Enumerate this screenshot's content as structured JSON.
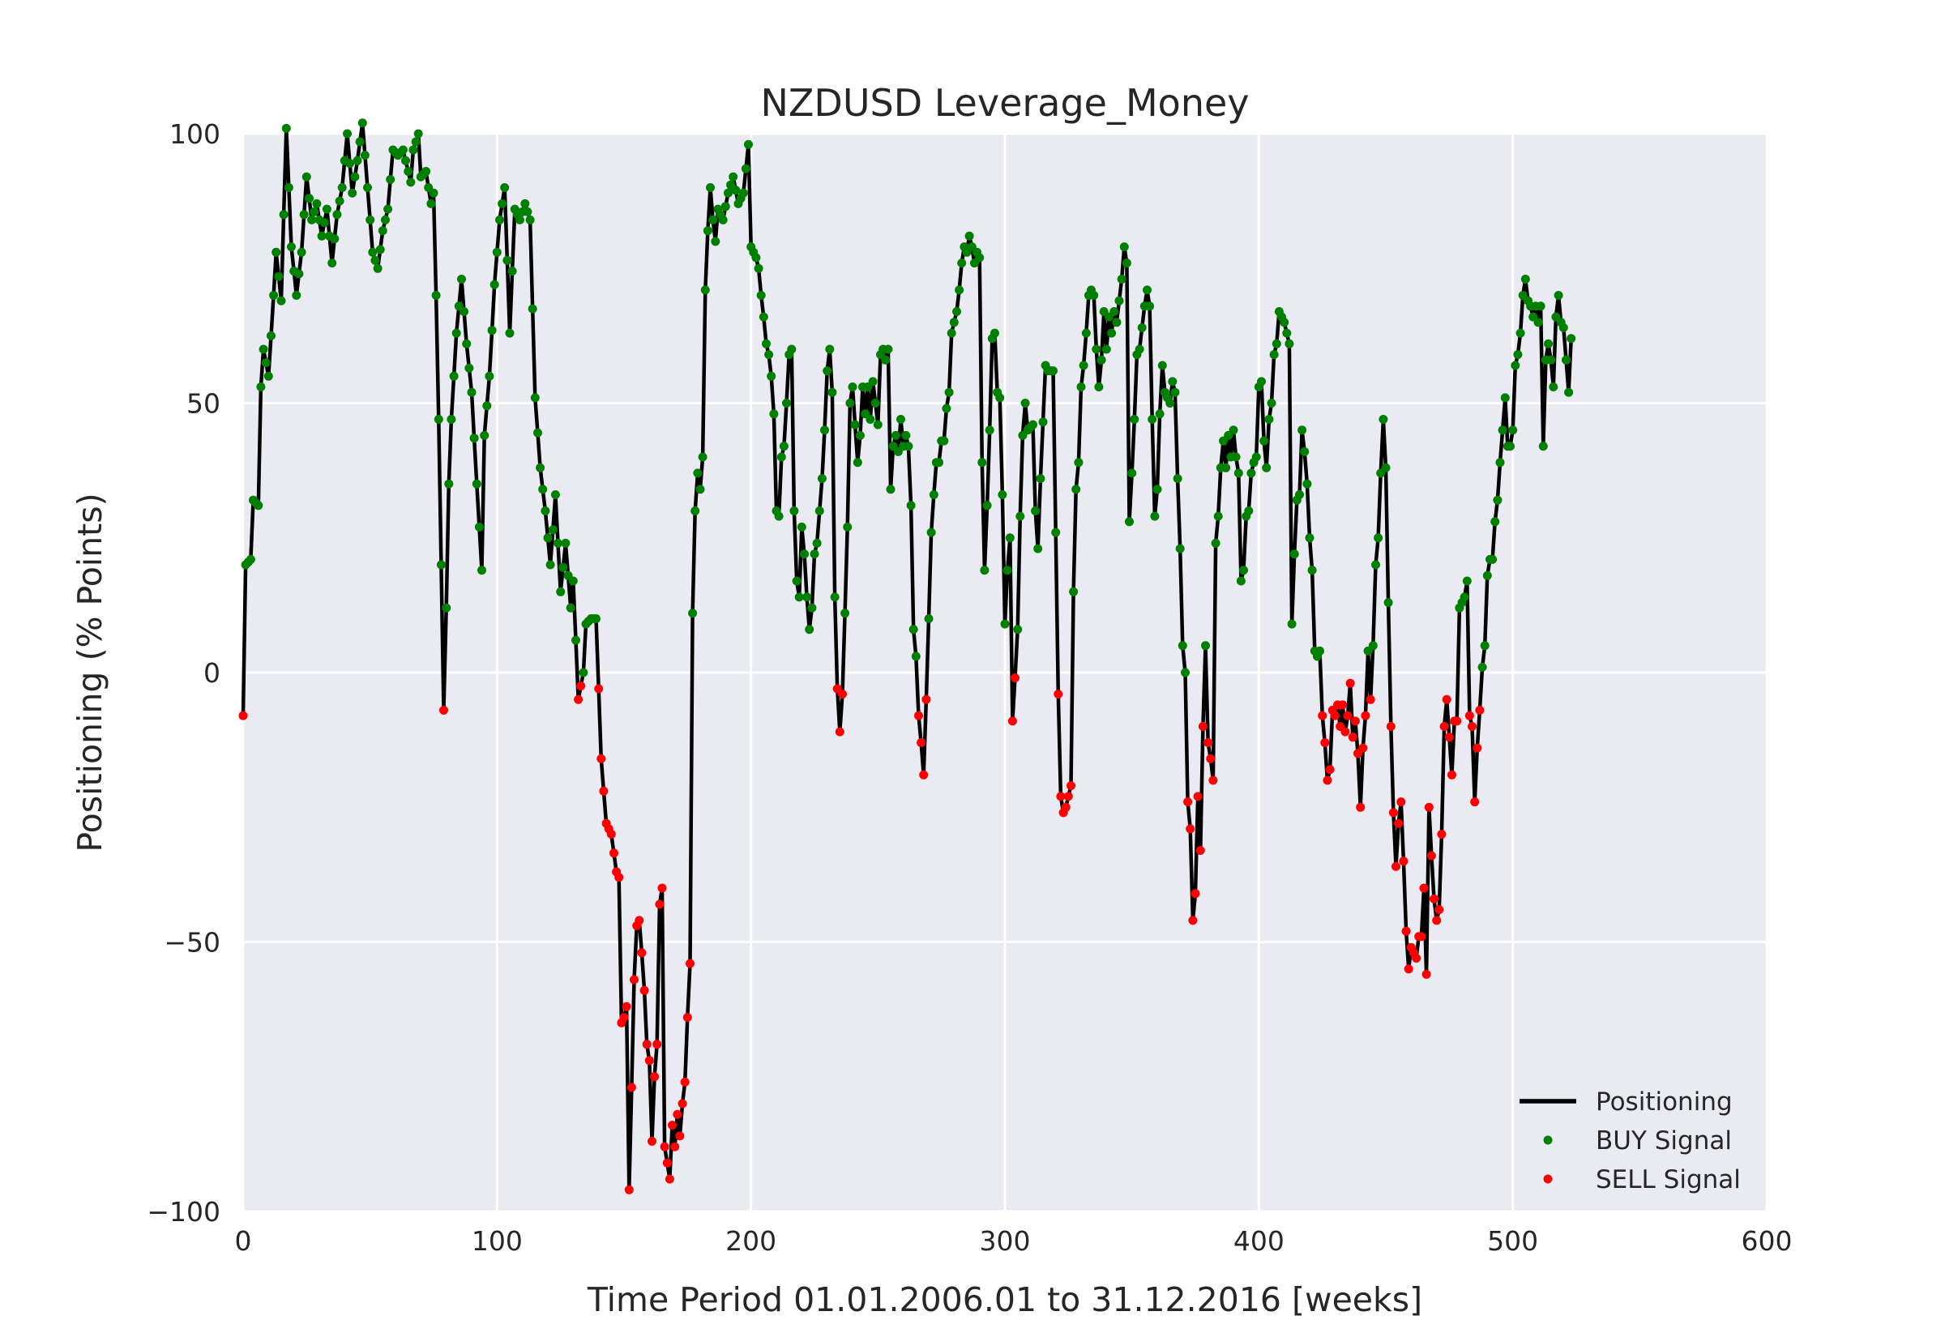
{
  "chart_data": {
    "type": "line",
    "title": "NZDUSD Leverage_Money",
    "xlabel": "Time Period 01.01.2006.01 to 31.12.2016 [weeks]",
    "ylabel": "Positioning (% Points)",
    "xlim": [
      0,
      600
    ],
    "ylim": [
      -100,
      100
    ],
    "xticks": [
      0,
      100,
      200,
      300,
      400,
      500,
      600
    ],
    "yticks": [
      -100,
      -50,
      0,
      50,
      100
    ],
    "xtick_labels": [
      "0",
      "100",
      "200",
      "300",
      "400",
      "500",
      "600"
    ],
    "ytick_labels": [
      "−100",
      "−50",
      "0",
      "50",
      "100"
    ],
    "grid": true,
    "legend_position": "lower-right",
    "colors": {
      "line": "#000000",
      "buy": "#008000",
      "sell": "#ff0000",
      "background": "#eaeaf2",
      "grid": "#ffffff"
    },
    "series": [
      {
        "name": "Positioning",
        "kind": "line"
      },
      {
        "name": "BUY Signal",
        "kind": "marker",
        "rule": "value >= 0"
      },
      {
        "name": "SELL Signal",
        "kind": "marker",
        "rule": "value < 0"
      }
    ],
    "keypoints": [
      [
        0,
        -8
      ],
      [
        1,
        20
      ],
      [
        3,
        21
      ],
      [
        4,
        32
      ],
      [
        6,
        31
      ],
      [
        7,
        53
      ],
      [
        8,
        60
      ],
      [
        10,
        55
      ],
      [
        12,
        70
      ],
      [
        13,
        78
      ],
      [
        15,
        69
      ],
      [
        17,
        101
      ],
      [
        19,
        79
      ],
      [
        21,
        70
      ],
      [
        23,
        78
      ],
      [
        25,
        92
      ],
      [
        27,
        84
      ],
      [
        29,
        87
      ],
      [
        31,
        81
      ],
      [
        33,
        86
      ],
      [
        35,
        76
      ],
      [
        37,
        85
      ],
      [
        39,
        90
      ],
      [
        41,
        100
      ],
      [
        43,
        89
      ],
      [
        45,
        95
      ],
      [
        47,
        102
      ],
      [
        49,
        90
      ],
      [
        51,
        78
      ],
      [
        53,
        75
      ],
      [
        55,
        82
      ],
      [
        57,
        86
      ],
      [
        59,
        97
      ],
      [
        61,
        96
      ],
      [
        63,
        97
      ],
      [
        65,
        93
      ],
      [
        66,
        91
      ],
      [
        67,
        97
      ],
      [
        69,
        100
      ],
      [
        70,
        92
      ],
      [
        72,
        93
      ],
      [
        74,
        87
      ],
      [
        75,
        89
      ],
      [
        76,
        70
      ],
      [
        77,
        47
      ],
      [
        79,
        -7
      ],
      [
        80,
        12
      ],
      [
        81,
        35
      ],
      [
        82,
        47
      ],
      [
        84,
        63
      ],
      [
        86,
        73
      ],
      [
        88,
        61
      ],
      [
        90,
        52
      ],
      [
        92,
        35
      ],
      [
        94,
        19
      ],
      [
        95,
        44
      ],
      [
        97,
        55
      ],
      [
        99,
        72
      ],
      [
        101,
        84
      ],
      [
        103,
        90
      ],
      [
        105,
        63
      ],
      [
        107,
        86
      ],
      [
        109,
        84
      ],
      [
        111,
        87
      ],
      [
        113,
        84
      ],
      [
        115,
        51
      ],
      [
        117,
        38
      ],
      [
        119,
        30
      ],
      [
        121,
        20
      ],
      [
        123,
        33
      ],
      [
        125,
        15
      ],
      [
        127,
        24
      ],
      [
        129,
        12
      ],
      [
        130,
        17
      ],
      [
        131,
        6
      ],
      [
        132,
        -5
      ],
      [
        134,
        0
      ],
      [
        135,
        9
      ],
      [
        137,
        10
      ],
      [
        139,
        10
      ],
      [
        140,
        -3
      ],
      [
        141,
        -16
      ],
      [
        143,
        -28
      ],
      [
        145,
        -30
      ],
      [
        147,
        -37
      ],
      [
        148,
        -38
      ],
      [
        149,
        -65
      ],
      [
        150,
        -64
      ],
      [
        151,
        -62
      ],
      [
        152,
        -96
      ],
      [
        153,
        -77
      ],
      [
        154,
        -57
      ],
      [
        155,
        -47
      ],
      [
        156,
        -46
      ],
      [
        157,
        -52
      ],
      [
        158,
        -59
      ],
      [
        159,
        -69
      ],
      [
        160,
        -72
      ],
      [
        161,
        -87
      ],
      [
        162,
        -75
      ],
      [
        163,
        -69
      ],
      [
        164,
        -43
      ],
      [
        165,
        -40
      ],
      [
        166,
        -88
      ],
      [
        167,
        -91
      ],
      [
        168,
        -94
      ],
      [
        169,
        -84
      ],
      [
        170,
        -88
      ],
      [
        171,
        -82
      ],
      [
        172,
        -86
      ],
      [
        173,
        -80
      ],
      [
        174,
        -76
      ],
      [
        175,
        -64
      ],
      [
        176,
        -54
      ],
      [
        177,
        11
      ],
      [
        178,
        30
      ],
      [
        179,
        37
      ],
      [
        180,
        34
      ],
      [
        181,
        40
      ],
      [
        182,
        71
      ],
      [
        183,
        82
      ],
      [
        184,
        90
      ],
      [
        185,
        84
      ],
      [
        186,
        80
      ],
      [
        187,
        86
      ],
      [
        189,
        84
      ],
      [
        191,
        89
      ],
      [
        193,
        92
      ],
      [
        195,
        87
      ],
      [
        197,
        89
      ],
      [
        199,
        98
      ],
      [
        200,
        79
      ],
      [
        202,
        77
      ],
      [
        203,
        75
      ],
      [
        204,
        70
      ],
      [
        205,
        66
      ],
      [
        206,
        61
      ],
      [
        207,
        59
      ],
      [
        208,
        55
      ],
      [
        209,
        48
      ],
      [
        210,
        30
      ],
      [
        211,
        29
      ],
      [
        212,
        40
      ],
      [
        213,
        42
      ],
      [
        214,
        50
      ],
      [
        215,
        59
      ],
      [
        216,
        60
      ],
      [
        217,
        30
      ],
      [
        218,
        17
      ],
      [
        219,
        14
      ],
      [
        220,
        27
      ],
      [
        221,
        22
      ],
      [
        222,
        14
      ],
      [
        223,
        8
      ],
      [
        224,
        12
      ],
      [
        225,
        22
      ],
      [
        226,
        24
      ],
      [
        227,
        30
      ],
      [
        228,
        36
      ],
      [
        229,
        45
      ],
      [
        230,
        56
      ],
      [
        231,
        60
      ],
      [
        232,
        52
      ],
      [
        233,
        14
      ],
      [
        234,
        -3
      ],
      [
        235,
        -11
      ],
      [
        236,
        -4
      ],
      [
        237,
        11
      ],
      [
        238,
        27
      ],
      [
        239,
        50
      ],
      [
        240,
        53
      ],
      [
        241,
        46
      ],
      [
        242,
        39
      ],
      [
        243,
        44
      ],
      [
        244,
        53
      ],
      [
        245,
        48
      ],
      [
        246,
        53
      ],
      [
        247,
        47
      ],
      [
        248,
        54
      ],
      [
        249,
        50
      ],
      [
        250,
        46
      ],
      [
        251,
        59
      ],
      [
        252,
        60
      ],
      [
        253,
        58
      ],
      [
        254,
        60
      ],
      [
        255,
        34
      ],
      [
        256,
        42
      ],
      [
        257,
        44
      ],
      [
        258,
        41
      ],
      [
        259,
        47
      ],
      [
        260,
        42
      ],
      [
        261,
        44
      ],
      [
        262,
        42
      ],
      [
        263,
        31
      ],
      [
        264,
        8
      ],
      [
        265,
        3
      ],
      [
        266,
        -8
      ],
      [
        267,
        -13
      ],
      [
        268,
        -19
      ],
      [
        269,
        -5
      ],
      [
        270,
        10
      ],
      [
        271,
        26
      ],
      [
        272,
        33
      ],
      [
        273,
        39
      ],
      [
        274,
        39
      ],
      [
        275,
        43
      ],
      [
        276,
        43
      ],
      [
        277,
        49
      ],
      [
        278,
        52
      ],
      [
        279,
        63
      ],
      [
        280,
        65
      ],
      [
        281,
        67
      ],
      [
        282,
        71
      ],
      [
        283,
        76
      ],
      [
        284,
        79
      ],
      [
        285,
        78
      ],
      [
        286,
        81
      ],
      [
        287,
        79
      ],
      [
        288,
        76
      ],
      [
        289,
        78
      ],
      [
        290,
        77
      ],
      [
        291,
        39
      ],
      [
        292,
        19
      ],
      [
        293,
        31
      ],
      [
        294,
        45
      ],
      [
        295,
        62
      ],
      [
        296,
        63
      ],
      [
        297,
        52
      ],
      [
        298,
        51
      ],
      [
        299,
        33
      ],
      [
        300,
        9
      ],
      [
        301,
        19
      ],
      [
        302,
        25
      ],
      [
        303,
        -9
      ],
      [
        304,
        -1
      ],
      [
        305,
        8
      ],
      [
        306,
        29
      ],
      [
        307,
        44
      ],
      [
        308,
        50
      ],
      [
        309,
        45
      ],
      [
        311,
        46
      ],
      [
        312,
        30
      ],
      [
        313,
        23
      ],
      [
        314,
        36
      ],
      [
        316,
        57
      ],
      [
        317,
        56
      ],
      [
        319,
        56
      ],
      [
        320,
        26
      ],
      [
        321,
        -4
      ],
      [
        322,
        -23
      ],
      [
        323,
        -26
      ],
      [
        324,
        -25
      ],
      [
        325,
        -23
      ],
      [
        326,
        -21
      ],
      [
        327,
        15
      ],
      [
        328,
        34
      ],
      [
        329,
        39
      ],
      [
        330,
        53
      ],
      [
        331,
        57
      ],
      [
        332,
        63
      ],
      [
        333,
        70
      ],
      [
        334,
        71
      ],
      [
        335,
        70
      ],
      [
        336,
        60
      ],
      [
        337,
        53
      ],
      [
        338,
        58
      ],
      [
        339,
        67
      ],
      [
        340,
        60
      ],
      [
        341,
        66
      ],
      [
        342,
        63
      ],
      [
        343,
        67
      ],
      [
        344,
        65
      ],
      [
        345,
        69
      ],
      [
        346,
        73
      ],
      [
        347,
        79
      ],
      [
        348,
        76
      ],
      [
        349,
        28
      ],
      [
        350,
        37
      ],
      [
        351,
        47
      ],
      [
        352,
        59
      ],
      [
        353,
        60
      ],
      [
        354,
        64
      ],
      [
        355,
        68
      ],
      [
        356,
        71
      ],
      [
        357,
        68
      ],
      [
        358,
        47
      ],
      [
        359,
        29
      ],
      [
        360,
        34
      ],
      [
        361,
        48
      ],
      [
        362,
        57
      ],
      [
        363,
        52
      ],
      [
        364,
        51
      ],
      [
        365,
        50
      ],
      [
        366,
        54
      ],
      [
        367,
        52
      ],
      [
        368,
        36
      ],
      [
        369,
        23
      ],
      [
        370,
        5
      ],
      [
        371,
        0
      ],
      [
        372,
        -24
      ],
      [
        373,
        -29
      ],
      [
        374,
        -46
      ],
      [
        375,
        -41
      ],
      [
        376,
        -23
      ],
      [
        377,
        -33
      ],
      [
        378,
        -10
      ],
      [
        379,
        5
      ],
      [
        380,
        -13
      ],
      [
        381,
        -16
      ],
      [
        382,
        -20
      ],
      [
        383,
        24
      ],
      [
        384,
        29
      ],
      [
        385,
        38
      ],
      [
        386,
        43
      ],
      [
        387,
        38
      ],
      [
        388,
        44
      ],
      [
        389,
        40
      ],
      [
        390,
        45
      ],
      [
        391,
        40
      ],
      [
        392,
        37
      ],
      [
        393,
        17
      ],
      [
        394,
        19
      ],
      [
        395,
        29
      ],
      [
        396,
        30
      ],
      [
        397,
        37
      ],
      [
        398,
        39
      ],
      [
        399,
        40
      ],
      [
        400,
        53
      ],
      [
        401,
        54
      ],
      [
        402,
        43
      ],
      [
        403,
        38
      ],
      [
        404,
        47
      ],
      [
        405,
        50
      ],
      [
        406,
        59
      ],
      [
        407,
        61
      ],
      [
        408,
        67
      ],
      [
        409,
        66
      ],
      [
        410,
        65
      ],
      [
        411,
        63
      ],
      [
        412,
        61
      ],
      [
        413,
        9
      ],
      [
        414,
        22
      ],
      [
        415,
        32
      ],
      [
        416,
        33
      ],
      [
        417,
        45
      ],
      [
        418,
        41
      ],
      [
        419,
        35
      ],
      [
        420,
        25
      ],
      [
        421,
        19
      ],
      [
        422,
        4
      ],
      [
        423,
        3
      ],
      [
        424,
        4
      ],
      [
        425,
        -8
      ],
      [
        426,
        -13
      ],
      [
        427,
        -20
      ],
      [
        428,
        -18
      ],
      [
        429,
        -7
      ],
      [
        430,
        -8
      ],
      [
        431,
        -6
      ],
      [
        432,
        -10
      ],
      [
        433,
        -6
      ],
      [
        434,
        -11
      ],
      [
        435,
        -8
      ],
      [
        436,
        -2
      ],
      [
        437,
        -12
      ],
      [
        438,
        -9
      ],
      [
        439,
        -15
      ],
      [
        440,
        -25
      ],
      [
        441,
        -14
      ],
      [
        442,
        -8
      ],
      [
        443,
        4
      ],
      [
        444,
        -5
      ],
      [
        445,
        5
      ],
      [
        446,
        20
      ],
      [
        447,
        25
      ],
      [
        448,
        37
      ],
      [
        449,
        47
      ],
      [
        450,
        38
      ],
      [
        451,
        13
      ],
      [
        452,
        -10
      ],
      [
        453,
        -26
      ],
      [
        454,
        -36
      ],
      [
        455,
        -28
      ],
      [
        456,
        -24
      ],
      [
        457,
        -35
      ],
      [
        458,
        -48
      ],
      [
        459,
        -55
      ],
      [
        460,
        -51
      ],
      [
        461,
        -52
      ],
      [
        462,
        -53
      ],
      [
        463,
        -49
      ],
      [
        464,
        -49
      ],
      [
        465,
        -40
      ],
      [
        466,
        -56
      ],
      [
        467,
        -25
      ],
      [
        468,
        -34
      ],
      [
        469,
        -42
      ],
      [
        470,
        -46
      ],
      [
        471,
        -44
      ],
      [
        472,
        -30
      ],
      [
        473,
        -10
      ],
      [
        474,
        -5
      ],
      [
        475,
        -12
      ],
      [
        476,
        -19
      ],
      [
        477,
        -9
      ],
      [
        478,
        -9
      ],
      [
        479,
        12
      ],
      [
        480,
        13
      ],
      [
        481,
        14
      ],
      [
        482,
        17
      ],
      [
        483,
        -8
      ],
      [
        484,
        -10
      ],
      [
        485,
        -24
      ],
      [
        486,
        -14
      ],
      [
        487,
        -7
      ],
      [
        488,
        1
      ],
      [
        489,
        5
      ],
      [
        490,
        18
      ],
      [
        491,
        21
      ],
      [
        492,
        21
      ],
      [
        493,
        28
      ],
      [
        494,
        32
      ],
      [
        495,
        39
      ],
      [
        496,
        45
      ],
      [
        497,
        51
      ],
      [
        498,
        42
      ],
      [
        499,
        42
      ],
      [
        500,
        45
      ],
      [
        501,
        57
      ],
      [
        502,
        59
      ],
      [
        503,
        63
      ],
      [
        504,
        70
      ],
      [
        505,
        73
      ],
      [
        506,
        69
      ],
      [
        507,
        68
      ],
      [
        508,
        66
      ],
      [
        509,
        68
      ],
      [
        510,
        65
      ],
      [
        511,
        68
      ],
      [
        512,
        42
      ],
      [
        513,
        58
      ],
      [
        514,
        61
      ],
      [
        515,
        58
      ],
      [
        516,
        53
      ],
      [
        517,
        66
      ],
      [
        518,
        70
      ],
      [
        519,
        65
      ],
      [
        520,
        64
      ],
      [
        521,
        58
      ],
      [
        522,
        52
      ],
      [
        523,
        62
      ]
    ]
  }
}
